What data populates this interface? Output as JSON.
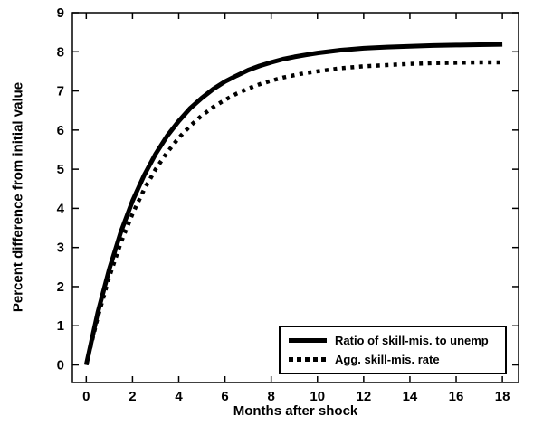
{
  "figure": {
    "background": "#ffffff",
    "line_color": "#000000"
  },
  "chart_data": {
    "type": "line",
    "title": "",
    "xlabel": "Months after shock",
    "ylabel": "Percent difference from initial value",
    "xlim": [
      -0.6,
      18.7
    ],
    "ylim": [
      -0.45,
      9
    ],
    "xticks": [
      0,
      2,
      4,
      6,
      8,
      10,
      12,
      14,
      16,
      18
    ],
    "yticks": [
      0,
      1,
      2,
      3,
      4,
      5,
      6,
      7,
      8,
      9
    ],
    "grid": false,
    "legend_position": "bottom-right",
    "x": [
      0,
      0.5,
      1,
      1.5,
      2,
      2.5,
      3,
      3.5,
      4,
      4.5,
      5,
      5.5,
      6,
      6.5,
      7,
      7.5,
      8,
      8.5,
      9,
      9.5,
      10,
      11,
      12,
      13,
      14,
      15,
      16,
      17,
      18
    ],
    "series": [
      {
        "name": "Ratio of skill-mis. to unemp",
        "style": "solid",
        "color": "#000000",
        "values": [
          0,
          1.34,
          2.46,
          3.4,
          4.19,
          4.84,
          5.39,
          5.85,
          6.23,
          6.56,
          6.82,
          7.05,
          7.24,
          7.39,
          7.53,
          7.64,
          7.73,
          7.81,
          7.87,
          7.92,
          7.97,
          8.04,
          8.09,
          8.12,
          8.14,
          8.16,
          8.17,
          8.18,
          8.19
        ]
      },
      {
        "name": "Agg. skill-mis. rate",
        "style": "dashed",
        "color": "#000000",
        "values": [
          0,
          1.23,
          2.26,
          3.13,
          3.86,
          4.48,
          5.0,
          5.43,
          5.8,
          6.11,
          6.37,
          6.59,
          6.77,
          6.93,
          7.06,
          7.17,
          7.26,
          7.34,
          7.4,
          7.46,
          7.5,
          7.58,
          7.63,
          7.66,
          7.69,
          7.71,
          7.72,
          7.73,
          7.73
        ]
      }
    ]
  }
}
